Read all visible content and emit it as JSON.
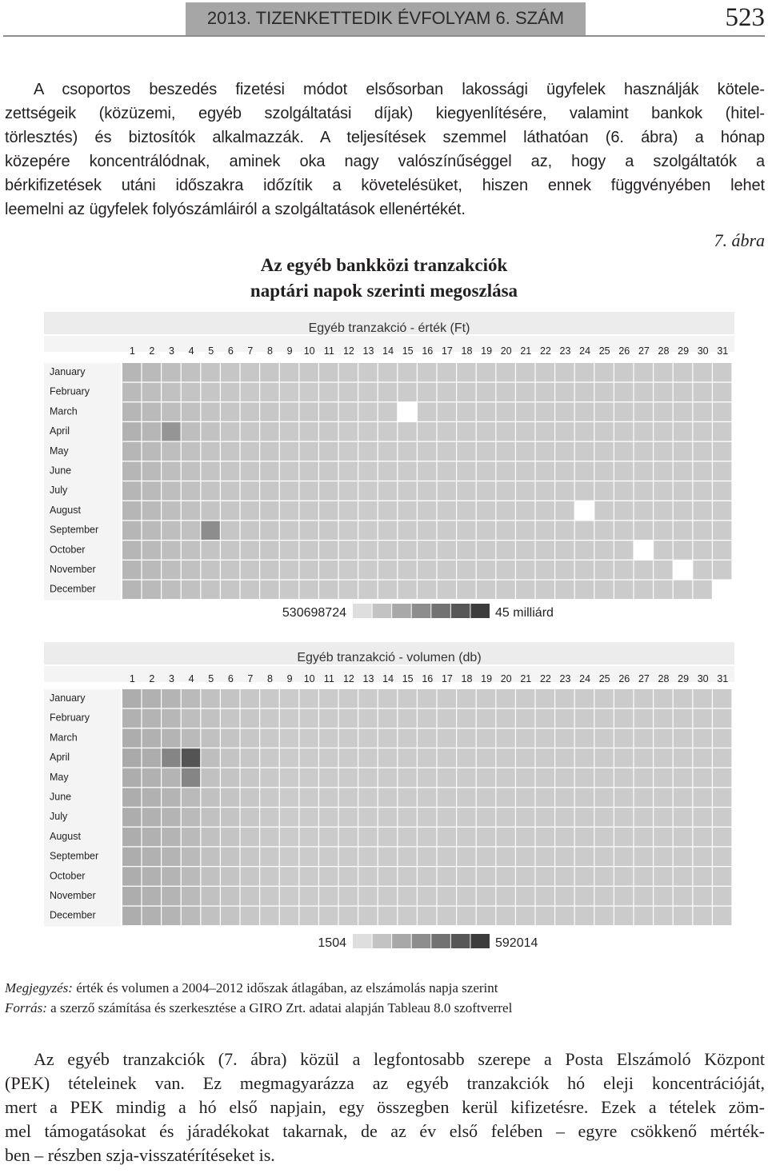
{
  "header": {
    "running_title": "2013. TIZENKETTEDIK ÉVFOLYAM 6. SZÁM",
    "page_number": "523"
  },
  "paragraph1": {
    "lines": [
      "A csoportos beszedés fizetési módot elsősorban lakossági ügyfelek használják kötele-",
      "zettségeik (közüzemi, egyéb szolgáltatási díjak) kiegyenlítésére, valamint bankok (hitel-",
      "törlesztés) és biztosítók alkalmazzák. A teljesítések szemmel láthatóan (6. ábra) a hónap",
      "közepére koncentrálódnak, aminek oka nagy valószínűséggel az, hogy a szolgáltatók a",
      "bérkifizetések utáni időszakra időzítik a követelésüket, hiszen ennek függvényében lehet",
      "leemelni az ügyfelek folyószámláiról a szolgáltatások ellenértékét."
    ]
  },
  "figure": {
    "label": "7. ábra",
    "title_line1": "Az egyéb bankközi tranzakciók",
    "title_line2": "naptári napok szerinti megoszlása"
  },
  "chart_data": [
    {
      "type": "heatmap",
      "title": "Egyéb tranzakció - érték (Ft)",
      "x_categories": [
        1,
        2,
        3,
        4,
        5,
        6,
        7,
        8,
        9,
        10,
        11,
        12,
        13,
        14,
        15,
        16,
        17,
        18,
        19,
        20,
        21,
        22,
        23,
        24,
        25,
        26,
        27,
        28,
        29,
        30,
        31
      ],
      "y_categories": [
        "January",
        "February",
        "March",
        "April",
        "May",
        "June",
        "July",
        "August",
        "September",
        "October",
        "November",
        "December"
      ],
      "value_scale": "relative shade level 0-1 between legend min and max",
      "legend_min": "530698724",
      "legend_max": "45 milliárd",
      "values": [
        [
          0.25,
          0.22,
          0.2,
          0.18,
          0.16,
          0.15,
          0.14,
          0.14,
          0.13,
          0.13,
          0.13,
          0.12,
          0.12,
          0.12,
          0.12,
          0.12,
          0.12,
          0.12,
          0.12,
          0.12,
          0.12,
          0.12,
          0.12,
          0.12,
          0.12,
          0.12,
          0.12,
          0.12,
          0.12,
          0.12,
          0.12
        ],
        [
          0.22,
          0.2,
          0.18,
          0.16,
          0.15,
          0.14,
          0.13,
          0.13,
          0.12,
          0.12,
          0.12,
          0.12,
          0.12,
          0.12,
          0.12,
          0.12,
          0.12,
          0.12,
          0.12,
          0.12,
          0.12,
          0.12,
          0.12,
          0.12,
          0.12,
          0.12,
          0.12,
          0.12,
          0.12,
          0.12,
          0.12
        ],
        [
          0.25,
          0.22,
          0.2,
          0.18,
          0.16,
          0.15,
          0.14,
          0.14,
          0.13,
          0.13,
          0.13,
          0.12,
          0.12,
          0.12,
          0.12,
          0.12,
          0.12,
          0.12,
          0.12,
          0.12,
          0.12,
          0.12,
          0.12,
          0.12,
          0.12,
          0.12,
          0.12,
          0.12,
          0.12,
          0.12,
          0.12
        ],
        [
          0.28,
          0.25,
          0.45,
          0.2,
          0.17,
          0.15,
          0.14,
          0.14,
          0.13,
          0.13,
          0.13,
          0.12,
          0.12,
          0.12,
          0.12,
          0.12,
          0.12,
          0.12,
          0.12,
          0.12,
          0.12,
          0.12,
          0.12,
          0.12,
          0.12,
          0.12,
          0.12,
          0.12,
          0.12,
          0.12,
          0.12
        ],
        [
          0.25,
          0.22,
          0.2,
          0.18,
          0.16,
          0.15,
          0.14,
          0.14,
          0.13,
          0.13,
          0.13,
          0.12,
          0.12,
          0.12,
          0.12,
          0.12,
          0.12,
          0.12,
          0.12,
          0.12,
          0.12,
          0.12,
          0.12,
          0.12,
          0.12,
          0.12,
          0.12,
          0.12,
          0.12,
          0.12,
          0.12
        ],
        [
          0.25,
          0.22,
          0.2,
          0.18,
          0.16,
          0.15,
          0.14,
          0.14,
          0.13,
          0.13,
          0.13,
          0.12,
          0.12,
          0.12,
          0.12,
          0.12,
          0.12,
          0.12,
          0.12,
          0.12,
          0.12,
          0.12,
          0.12,
          0.12,
          0.12,
          0.12,
          0.12,
          0.12,
          0.12,
          0.12,
          0.12
        ],
        [
          0.25,
          0.22,
          0.2,
          0.18,
          0.16,
          0.15,
          0.14,
          0.14,
          0.13,
          0.13,
          0.13,
          0.12,
          0.12,
          0.12,
          0.12,
          0.12,
          0.12,
          0.12,
          0.12,
          0.12,
          0.12,
          0.12,
          0.12,
          0.12,
          0.12,
          0.12,
          0.12,
          0.12,
          0.12,
          0.12,
          0.12
        ],
        [
          0.25,
          0.22,
          0.2,
          0.18,
          0.16,
          0.15,
          0.14,
          0.14,
          0.13,
          0.13,
          0.13,
          0.12,
          0.12,
          0.12,
          0.12,
          0.12,
          0.12,
          0.12,
          0.12,
          0.12,
          0.12,
          0.12,
          0.12,
          0.12,
          0.12,
          0.12,
          0.12,
          0.12,
          0.12,
          0.12,
          0.12
        ],
        [
          0.25,
          0.22,
          0.2,
          0.18,
          0.5,
          0.15,
          0.14,
          0.14,
          0.13,
          0.13,
          0.13,
          0.12,
          0.12,
          0.12,
          0.12,
          0.12,
          0.12,
          0.12,
          0.12,
          0.12,
          0.12,
          0.12,
          0.12,
          0.12,
          0.12,
          0.12,
          0.12,
          0.12,
          0.12,
          0.12,
          0.12
        ],
        [
          0.25,
          0.22,
          0.2,
          0.18,
          0.16,
          0.15,
          0.14,
          0.14,
          0.13,
          0.13,
          0.13,
          0.12,
          0.12,
          0.12,
          0.12,
          0.12,
          0.12,
          0.12,
          0.12,
          0.12,
          0.12,
          0.12,
          0.12,
          0.12,
          0.12,
          0.12,
          0.12,
          0.12,
          0.12,
          0.12,
          0.12
        ],
        [
          0.25,
          0.22,
          0.2,
          0.18,
          0.16,
          0.15,
          0.14,
          0.14,
          0.13,
          0.13,
          0.13,
          0.12,
          0.12,
          0.12,
          0.12,
          0.12,
          0.12,
          0.12,
          0.12,
          0.12,
          0.12,
          0.12,
          0.12,
          0.12,
          0.12,
          0.12,
          0.12,
          0.12,
          0.12,
          0.12,
          0.12
        ],
        [
          0.25,
          0.22,
          0.2,
          0.18,
          0.16,
          0.15,
          0.14,
          0.14,
          0.13,
          0.13,
          0.13,
          0.12,
          0.12,
          0.12,
          0.12,
          0.12,
          0.12,
          0.12,
          0.12,
          0.12,
          0.12,
          0.12,
          0.12,
          0.12,
          0.12,
          0.12,
          0.12,
          0.12,
          0.12,
          0.12,
          0.12
        ]
      ],
      "blank_cells": [
        [
          3,
          15
        ],
        [
          8,
          24
        ],
        [
          10,
          27
        ],
        [
          11,
          29
        ],
        [
          12,
          31
        ]
      ],
      "grid": false
    },
    {
      "type": "heatmap",
      "title": "Egyéb tranzakció - volumen (db)",
      "x_categories": [
        1,
        2,
        3,
        4,
        5,
        6,
        7,
        8,
        9,
        10,
        11,
        12,
        13,
        14,
        15,
        16,
        17,
        18,
        19,
        20,
        21,
        22,
        23,
        24,
        25,
        26,
        27,
        28,
        29,
        30,
        31
      ],
      "y_categories": [
        "January",
        "February",
        "March",
        "April",
        "May",
        "June",
        "July",
        "August",
        "September",
        "October",
        "November",
        "December"
      ],
      "value_scale": "relative shade level 0-1 between legend min and max",
      "legend_min": "1504",
      "legend_max": "592014",
      "values": [
        [
          0.3,
          0.28,
          0.26,
          0.22,
          0.18,
          0.16,
          0.14,
          0.13,
          0.12,
          0.12,
          0.12,
          0.12,
          0.12,
          0.12,
          0.12,
          0.12,
          0.12,
          0.12,
          0.12,
          0.12,
          0.12,
          0.12,
          0.12,
          0.12,
          0.12,
          0.12,
          0.12,
          0.12,
          0.12,
          0.12,
          0.12
        ],
        [
          0.28,
          0.26,
          0.24,
          0.2,
          0.17,
          0.15,
          0.14,
          0.13,
          0.12,
          0.12,
          0.12,
          0.12,
          0.12,
          0.12,
          0.12,
          0.12,
          0.12,
          0.12,
          0.12,
          0.12,
          0.12,
          0.12,
          0.12,
          0.12,
          0.12,
          0.12,
          0.12,
          0.12,
          0.12,
          0.12,
          0.12
        ],
        [
          0.3,
          0.28,
          0.26,
          0.22,
          0.18,
          0.16,
          0.14,
          0.13,
          0.12,
          0.12,
          0.12,
          0.12,
          0.12,
          0.12,
          0.12,
          0.12,
          0.12,
          0.12,
          0.12,
          0.12,
          0.12,
          0.12,
          0.12,
          0.12,
          0.12,
          0.12,
          0.12,
          0.12,
          0.12,
          0.12,
          0.12
        ],
        [
          0.32,
          0.3,
          0.55,
          0.85,
          0.2,
          0.16,
          0.14,
          0.13,
          0.12,
          0.12,
          0.12,
          0.12,
          0.12,
          0.12,
          0.12,
          0.12,
          0.12,
          0.12,
          0.12,
          0.12,
          0.12,
          0.12,
          0.12,
          0.12,
          0.12,
          0.12,
          0.12,
          0.12,
          0.12,
          0.12,
          0.12
        ],
        [
          0.3,
          0.28,
          0.26,
          0.55,
          0.18,
          0.16,
          0.14,
          0.13,
          0.12,
          0.12,
          0.12,
          0.12,
          0.12,
          0.12,
          0.12,
          0.12,
          0.12,
          0.12,
          0.12,
          0.12,
          0.12,
          0.12,
          0.12,
          0.12,
          0.12,
          0.12,
          0.12,
          0.12,
          0.12,
          0.12,
          0.12
        ],
        [
          0.3,
          0.28,
          0.26,
          0.22,
          0.18,
          0.16,
          0.14,
          0.13,
          0.12,
          0.12,
          0.12,
          0.12,
          0.12,
          0.12,
          0.12,
          0.12,
          0.12,
          0.12,
          0.12,
          0.12,
          0.12,
          0.12,
          0.12,
          0.12,
          0.12,
          0.12,
          0.12,
          0.12,
          0.12,
          0.12,
          0.12
        ],
        [
          0.3,
          0.28,
          0.26,
          0.22,
          0.18,
          0.16,
          0.14,
          0.13,
          0.12,
          0.12,
          0.12,
          0.12,
          0.12,
          0.12,
          0.12,
          0.12,
          0.12,
          0.12,
          0.12,
          0.12,
          0.12,
          0.12,
          0.12,
          0.12,
          0.12,
          0.12,
          0.12,
          0.12,
          0.12,
          0.12,
          0.12
        ],
        [
          0.3,
          0.28,
          0.26,
          0.22,
          0.18,
          0.16,
          0.14,
          0.13,
          0.12,
          0.12,
          0.12,
          0.12,
          0.12,
          0.12,
          0.12,
          0.12,
          0.12,
          0.12,
          0.12,
          0.12,
          0.12,
          0.12,
          0.12,
          0.12,
          0.12,
          0.12,
          0.12,
          0.12,
          0.12,
          0.12,
          0.12
        ],
        [
          0.3,
          0.28,
          0.26,
          0.22,
          0.18,
          0.16,
          0.14,
          0.13,
          0.12,
          0.12,
          0.12,
          0.12,
          0.12,
          0.12,
          0.12,
          0.12,
          0.12,
          0.12,
          0.12,
          0.12,
          0.12,
          0.12,
          0.12,
          0.12,
          0.12,
          0.12,
          0.12,
          0.12,
          0.12,
          0.12,
          0.12
        ],
        [
          0.3,
          0.28,
          0.26,
          0.22,
          0.18,
          0.16,
          0.14,
          0.13,
          0.12,
          0.12,
          0.12,
          0.12,
          0.12,
          0.12,
          0.12,
          0.12,
          0.12,
          0.12,
          0.12,
          0.12,
          0.12,
          0.12,
          0.12,
          0.12,
          0.12,
          0.12,
          0.12,
          0.12,
          0.12,
          0.12,
          0.12
        ],
        [
          0.3,
          0.28,
          0.26,
          0.22,
          0.18,
          0.16,
          0.14,
          0.13,
          0.12,
          0.12,
          0.12,
          0.12,
          0.12,
          0.12,
          0.12,
          0.12,
          0.12,
          0.12,
          0.12,
          0.12,
          0.12,
          0.12,
          0.12,
          0.12,
          0.12,
          0.12,
          0.12,
          0.12,
          0.12,
          0.12,
          0.12
        ],
        [
          0.3,
          0.28,
          0.26,
          0.22,
          0.18,
          0.16,
          0.14,
          0.13,
          0.12,
          0.12,
          0.12,
          0.12,
          0.12,
          0.12,
          0.12,
          0.12,
          0.12,
          0.12,
          0.12,
          0.12,
          0.12,
          0.12,
          0.12,
          0.12,
          0.12,
          0.12,
          0.12,
          0.12,
          0.12,
          0.12,
          0.12
        ]
      ],
      "blank_cells": [],
      "grid": false
    }
  ],
  "notes": {
    "note_label": "Megjegyzés:",
    "note_text": "érték és volumen a 2004–2012 időszak átlagában, az elszámolás napja szerint",
    "source_label": "Forrás:",
    "source_text": "a szerző számítása és szerkesztése a GIRO Zrt. adatai alapján Tableau 8.0 szoftverrel"
  },
  "paragraph2": {
    "lines": [
      "Az egyéb tranzakciók (7. ábra) közül a legfontosabb szerepe a Posta Elszámoló Központ",
      "(PEK) tételeinek van. Ez megmagyarázza az egyéb tranzakciók hó eleji koncentrációját,",
      "mert a PEK mindig a hó első napjain, egy összegben kerül kifizetésre. Ezek a tételek zöm-",
      "mel támogatásokat és járadékokat takarnak, de az év első felében – egyre csökkenő mérték-",
      "ben – részben szja-visszatérítéseket is."
    ]
  }
}
